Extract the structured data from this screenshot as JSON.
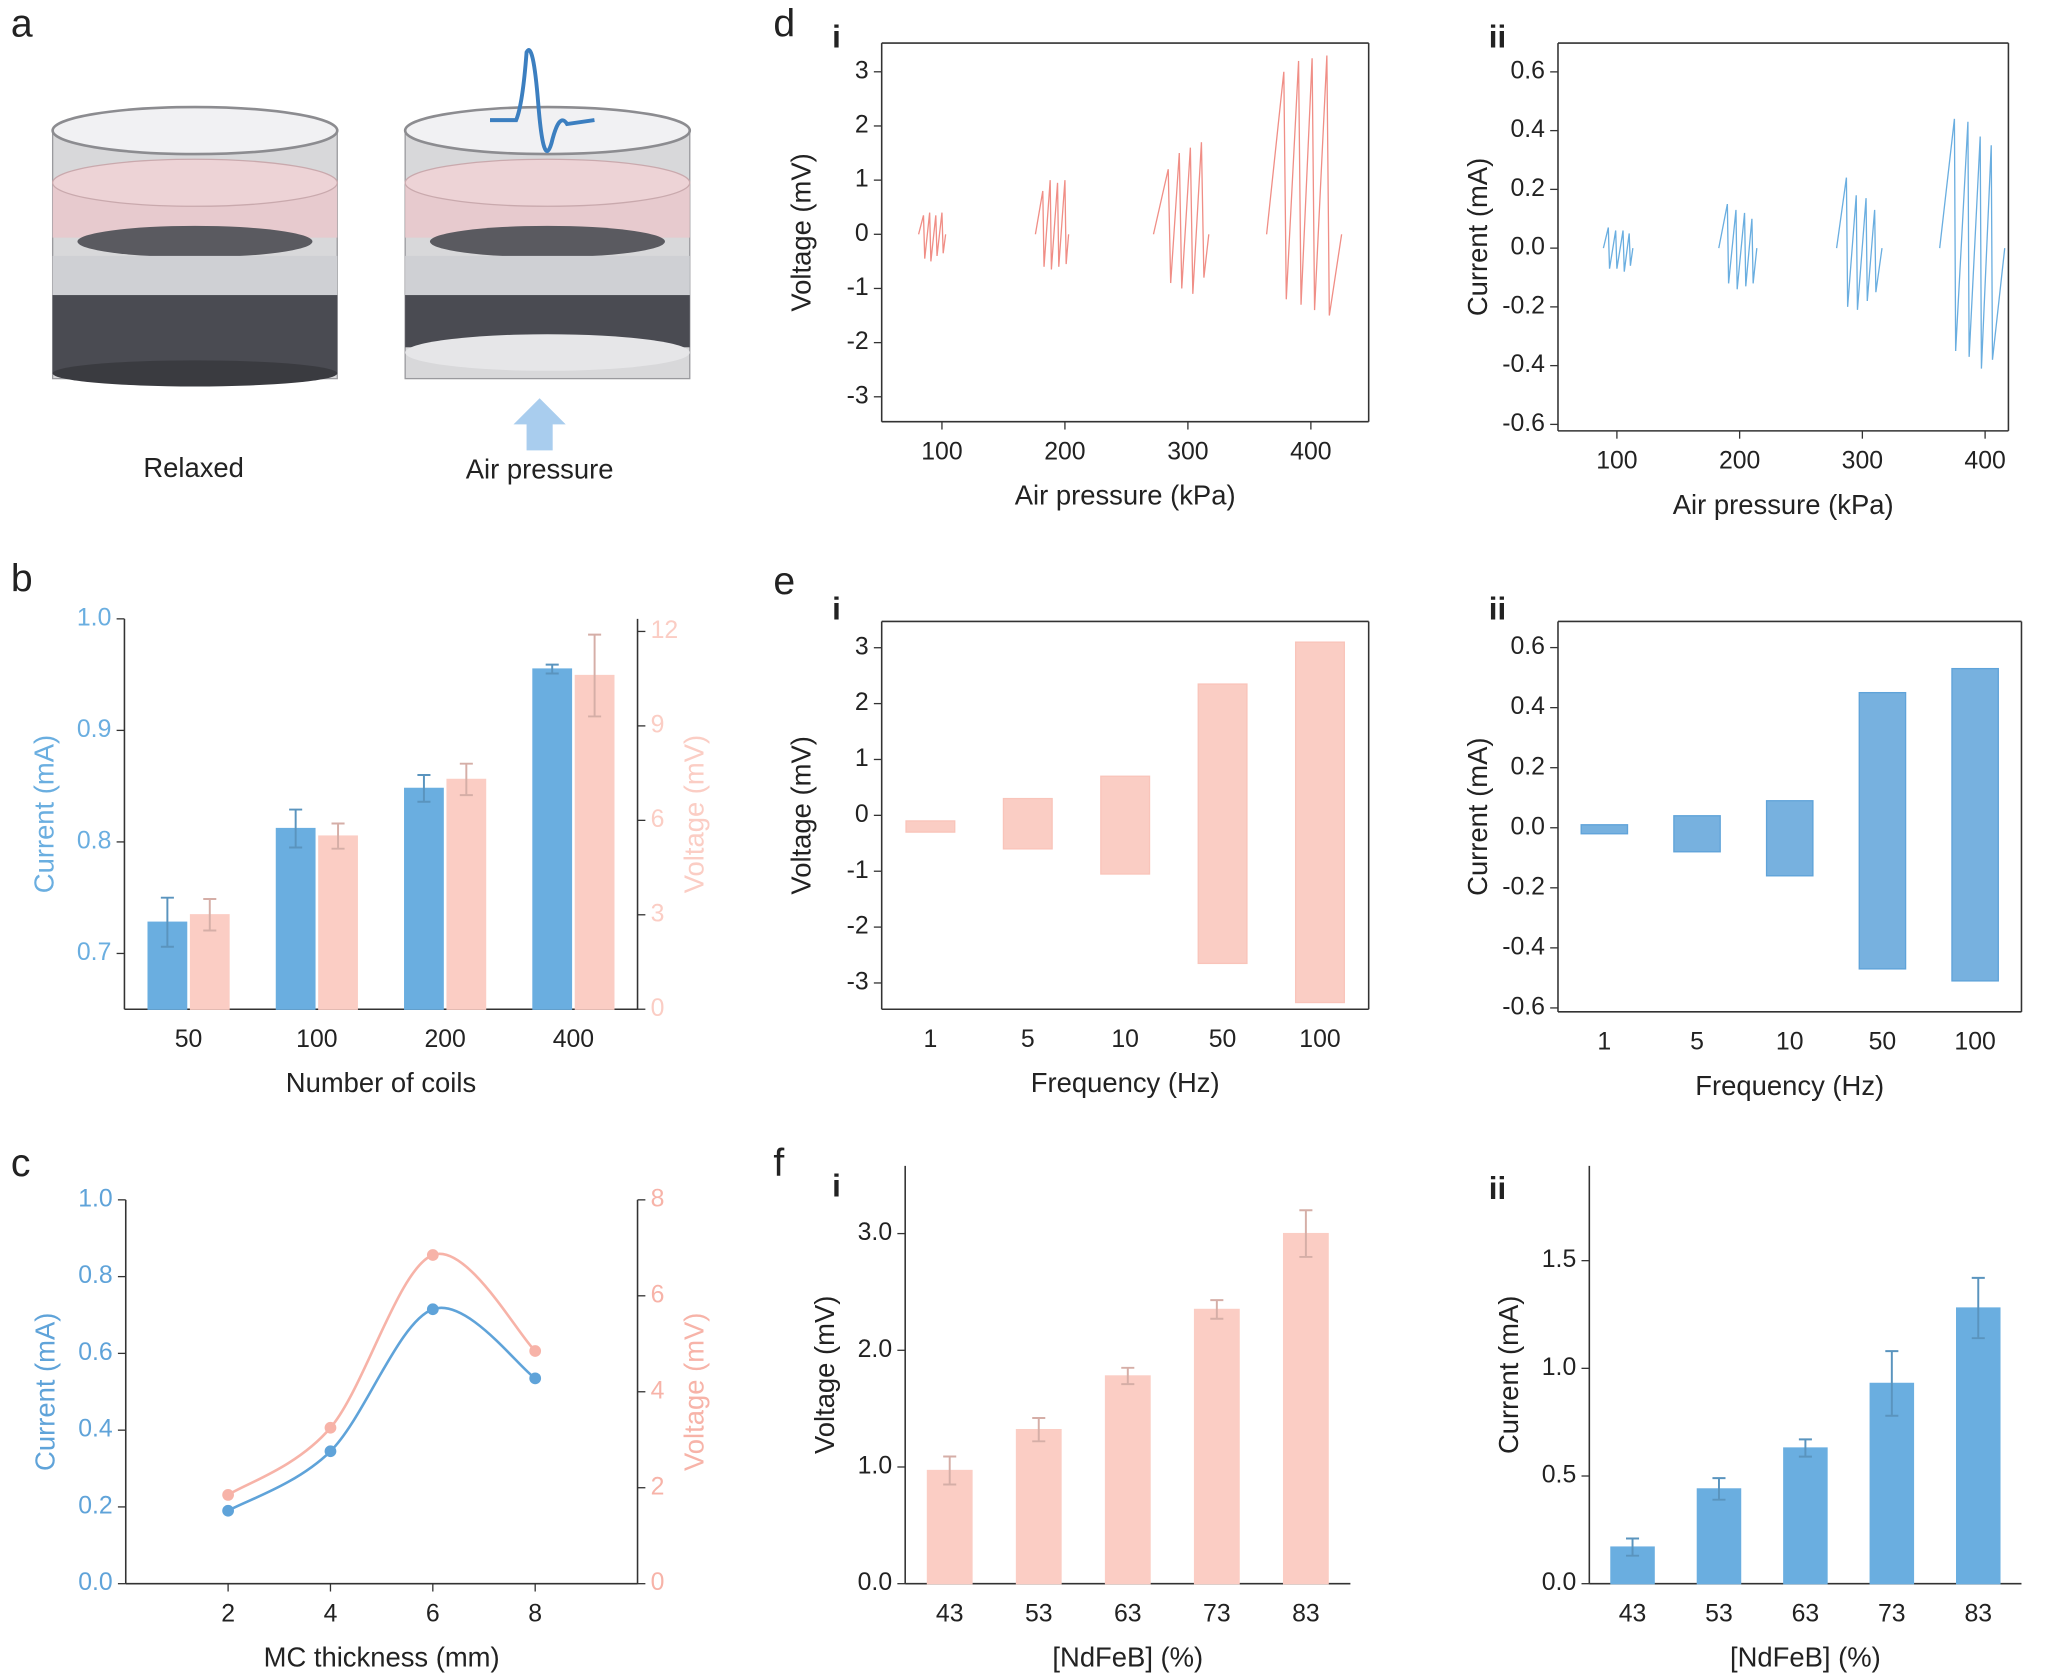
{
  "panel_a": {
    "label": "a",
    "captions": [
      "Relaxed",
      "Air pressure"
    ]
  },
  "chart_data": [
    {
      "panel": "b",
      "type": "bar",
      "categories": [
        "50",
        "100",
        "200",
        "400"
      ],
      "xlabel": "Number of coils",
      "ylabel": "Current (mA)",
      "y2label": "Voltage (mV)",
      "ylim": [
        0.65,
        1.0
      ],
      "yticks": [
        0.7,
        0.8,
        0.9,
        {
          "value": 1.0,
          "label": "1.0"
        }
      ],
      "y2lim": [
        0,
        12.4
      ],
      "y2ticks": [
        0,
        3,
        6,
        9,
        12
      ],
      "series": [
        {
          "color": "#6aaee0",
          "values": [
            0.728,
            0.812,
            0.848,
            0.955
          ],
          "errors": [
            0.022,
            0.017,
            0.012,
            0.004
          ]
        },
        {
          "color": "#fbcdc4",
          "axis": "y2",
          "values": [
            3.0,
            5.5,
            7.3,
            10.6
          ],
          "errors": [
            0.5,
            0.4,
            0.5,
            1.3
          ]
        }
      ]
    },
    {
      "panel": "c",
      "type": "line",
      "smooth": true,
      "markers": true,
      "x": [
        2,
        4,
        6,
        8
      ],
      "xlabel": "MC thickness (mm)",
      "ylabel": "Current (mA)",
      "y2label": "Voltage (mV)",
      "xlim": [
        0,
        10
      ],
      "xticks": [
        2,
        4,
        6,
        8
      ],
      "ylim": [
        0,
        1.0
      ],
      "yticks": [
        {
          "value": 0,
          "label": "0.0"
        },
        0.2,
        0.4,
        0.6,
        0.8,
        {
          "value": 1.0,
          "label": "1.0"
        }
      ],
      "y2lim": [
        0,
        8
      ],
      "y2ticks": [
        0,
        2,
        4,
        6,
        8
      ],
      "series": [
        {
          "color": "#5fa3d9",
          "values": [
            0.19,
            0.345,
            0.715,
            0.535
          ]
        },
        {
          "color": "#f7b3a8",
          "axis": "y2",
          "values": [
            1.85,
            3.25,
            6.85,
            4.85
          ]
        }
      ]
    },
    {
      "panel": "d",
      "subpanel": "i",
      "type": "line",
      "xlabel": "Air pressure (kPa)",
      "ylabel": "Voltage (mV)",
      "xlim": [
        51,
        447
      ],
      "xticks": [
        100,
        200,
        300,
        400
      ],
      "ylim": [
        -3.46,
        3.53
      ],
      "yticks": [
        -3,
        -2,
        -1,
        0,
        1,
        2,
        3
      ],
      "x": [
        81,
        85,
        86,
        90,
        91,
        95,
        96,
        100,
        101,
        103,
        140,
        176,
        182,
        183,
        188,
        189,
        194,
        195,
        200,
        201,
        203,
        240,
        272,
        284,
        286,
        293,
        295,
        302,
        304,
        311,
        313,
        317,
        340,
        364,
        378,
        380,
        390,
        392,
        401,
        403,
        413,
        415,
        425
      ],
      "series": [
        {
          "color": "#f08e86",
          "values": [
            0,
            0.35,
            -0.45,
            0.4,
            -0.5,
            0.35,
            -0.4,
            0.4,
            -0.35,
            0,
            null,
            0,
            0.8,
            -0.6,
            1.0,
            -0.65,
            0.95,
            -0.6,
            1.0,
            -0.55,
            0,
            null,
            0,
            1.2,
            -0.9,
            1.5,
            -1.0,
            1.6,
            -1.1,
            1.7,
            -0.8,
            0,
            null,
            0,
            3.0,
            -1.2,
            3.2,
            -1.3,
            3.25,
            -1.4,
            3.3,
            -1.5,
            0
          ]
        }
      ]
    },
    {
      "subpanel": "ii",
      "type": "line",
      "xlabel": "Air pressure (kPa)",
      "ylabel": "Current (mA)",
      "xlim": [
        52,
        419
      ],
      "xticks": [
        100,
        200,
        300,
        400
      ],
      "ylim": [
        -0.622,
        0.698
      ],
      "yticks": [
        -0.6,
        -0.4,
        -0.2,
        {
          "value": 0,
          "label": "0.0"
        },
        0.2,
        0.4,
        0.6
      ],
      "x": [
        89,
        93,
        94,
        99,
        100,
        105,
        106,
        110,
        111,
        113,
        150,
        183,
        190,
        191,
        197,
        198,
        204,
        205,
        210,
        211,
        214,
        250,
        279,
        287,
        288,
        295,
        296,
        303,
        304,
        310,
        311,
        316,
        340,
        363,
        375,
        376,
        386,
        387,
        396,
        397,
        405,
        406,
        416
      ],
      "series": [
        {
          "color": "#6aaee0",
          "values": [
            0,
            0.07,
            -0.07,
            0.06,
            -0.07,
            0.06,
            -0.08,
            0.05,
            -0.06,
            0,
            null,
            0,
            0.15,
            -0.12,
            0.13,
            -0.14,
            0.12,
            -0.13,
            0.1,
            -0.12,
            0,
            null,
            0,
            0.24,
            -0.2,
            0.18,
            -0.21,
            0.17,
            -0.18,
            0.13,
            -0.15,
            0,
            null,
            0,
            0.44,
            -0.35,
            0.43,
            -0.37,
            0.38,
            -0.41,
            0.35,
            -0.38,
            0
          ]
        }
      ]
    },
    {
      "panel": "e",
      "subpanel": "i",
      "type": "band",
      "categories": [
        "1",
        "5",
        "10",
        "50",
        "100"
      ],
      "xlabel": "Frequency (Hz)",
      "ylabel": "Voltage (mV)",
      "ylim": [
        -3.47,
        3.47
      ],
      "yticks": [
        -3,
        -2,
        -1,
        0,
        1,
        2,
        3
      ],
      "color": "#f9c4ba",
      "upper": [
        -0.1,
        0.3,
        0.7,
        2.35,
        3.1
      ],
      "lower": [
        -0.3,
        -0.6,
        -1.05,
        -2.65,
        -3.35
      ]
    },
    {
      "subpanel": "ii",
      "type": "band",
      "categories": [
        "1",
        "5",
        "10",
        "50",
        "100"
      ],
      "xlabel": "Frequency (Hz)",
      "ylabel": "Current (mA)",
      "ylim": [
        -0.613,
        0.687
      ],
      "yticks": [
        -0.6,
        -0.4,
        -0.2,
        {
          "value": 0,
          "label": "0.0"
        },
        0.2,
        0.4,
        0.6
      ],
      "color": "#5fa3d9",
      "upper": [
        0.01,
        0.04,
        0.09,
        0.45,
        0.53
      ],
      "lower": [
        -0.02,
        -0.08,
        -0.16,
        -0.47,
        -0.51
      ]
    },
    {
      "panel": "f",
      "subpanel": "i",
      "type": "bar",
      "categories": [
        "43",
        "53",
        "63",
        "73",
        "83"
      ],
      "xlabel": "[NdFeB] (%)",
      "ylabel": "Voltage (mV)",
      "ylim": [
        0,
        3.58
      ],
      "yticks": [
        {
          "value": 0,
          "label": "0.0"
        },
        {
          "value": 1,
          "label": "1.0"
        },
        {
          "value": 2,
          "label": "2.0"
        },
        {
          "value": 3,
          "label": "3.0"
        }
      ],
      "series": [
        {
          "color": "#fbcdc4",
          "values": [
            0.97,
            1.32,
            1.78,
            2.35,
            3.0
          ],
          "errors": [
            0.12,
            0.1,
            0.07,
            0.08,
            0.2
          ]
        }
      ]
    },
    {
      "subpanel": "ii",
      "type": "bar",
      "categories": [
        "43",
        "53",
        "63",
        "73",
        "83"
      ],
      "xlabel": "[NdFeB] (%)",
      "ylabel": "Current (mA)",
      "ylim": [
        0,
        1.94
      ],
      "yticks": [
        {
          "value": 0,
          "label": "0.0"
        },
        0.5,
        {
          "value": 1,
          "label": "1.0"
        },
        1.5
      ],
      "series": [
        {
          "color": "#6aaee0",
          "values": [
            0.17,
            0.44,
            0.63,
            0.93,
            1.28
          ],
          "errors": [
            0.04,
            0.05,
            0.04,
            0.15,
            0.14
          ]
        }
      ]
    }
  ]
}
